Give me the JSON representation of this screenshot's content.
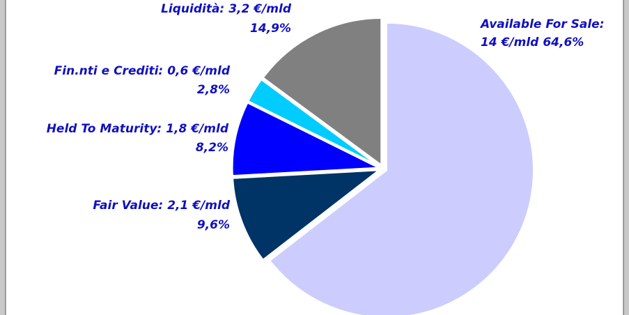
{
  "chart_data": {
    "type": "pie",
    "categories": [
      "Available For Sale:",
      "Fair Value:",
      "Held To Maturity:",
      "Fin.nti e Crediti:",
      "Liquidità:"
    ],
    "amount_labels": [
      "14 €/mld",
      "2,1 €/mld",
      "1,8 €/mld",
      "0,6 €/mld",
      "3,2 €/mld"
    ],
    "values": [
      64.6,
      9.6,
      8.2,
      2.8,
      14.9
    ],
    "value_labels": [
      "64,6%",
      "9,6%",
      "8,2%",
      "2,8%",
      "14,9%"
    ],
    "colors": [
      "#ccccff",
      "#003366",
      "#0000ff",
      "#00ccff",
      "#808080"
    ]
  }
}
